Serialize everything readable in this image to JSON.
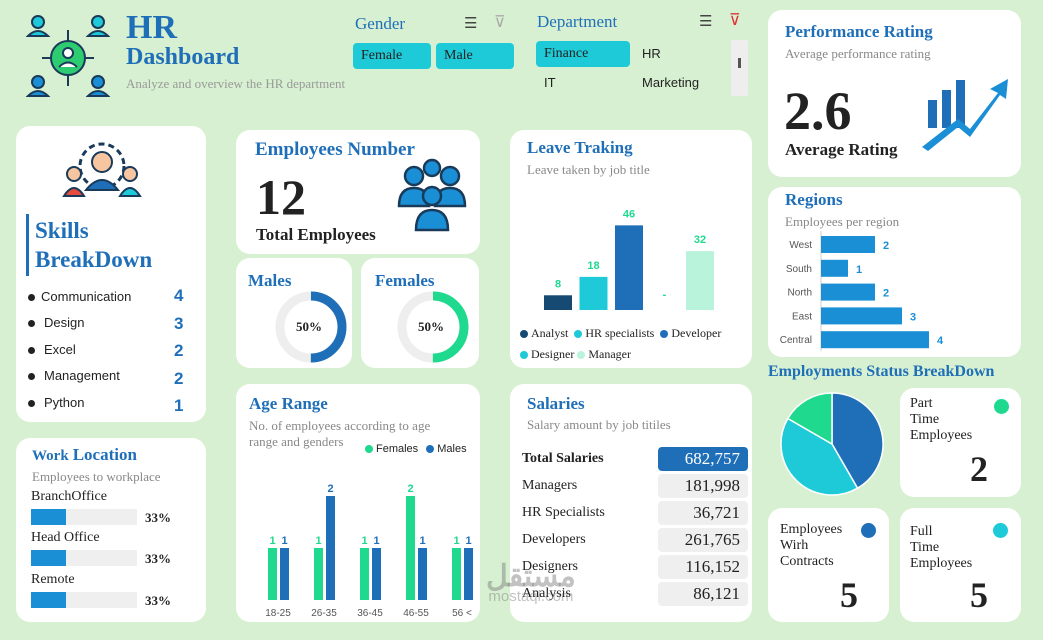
{
  "header": {
    "title_line1": "HR",
    "title_line2": "Dashboard",
    "subtitle": "Analyze and overview the HR department"
  },
  "gender_slicer": {
    "title": "Gender",
    "options": [
      "Female",
      "Male"
    ],
    "selected": [
      "Female",
      "Male"
    ]
  },
  "department_slicer": {
    "title": "Department",
    "options": [
      "Finance",
      "HR",
      "IT",
      "Marketing"
    ],
    "selected": [
      "Finance"
    ]
  },
  "performance": {
    "title": "Performance Rating",
    "subtitle": "Average performance rating",
    "value": "2.6",
    "label": "Average Rating"
  },
  "skills": {
    "title_line1": "Skills",
    "title_line2": "BreakDown",
    "items": [
      {
        "name": "Communication",
        "count": "4"
      },
      {
        "name": "Design",
        "count": "3"
      },
      {
        "name": "Excel",
        "count": "2"
      },
      {
        "name": "Management",
        "count": "2"
      },
      {
        "name": "Python",
        "count": "1"
      }
    ]
  },
  "employees": {
    "title": "Employees Number",
    "value": "12",
    "label": "Total Employees"
  },
  "males": {
    "title": "Males",
    "value_text": "50%",
    "value": 0.5
  },
  "females": {
    "title": "Females",
    "value_text": "50%",
    "value": 0.5
  },
  "work_location": {
    "title_a": "Work",
    "title_b": "Location",
    "subtitle": "Employees to workplace",
    "items": [
      {
        "name": "BranchOffice",
        "pct_text": "33%",
        "value": 0.33
      },
      {
        "name": "Head Office",
        "pct_text": "33%",
        "value": 0.33
      },
      {
        "name": "Remote",
        "pct_text": "33%",
        "value": 0.33
      }
    ]
  },
  "leave": {
    "title": "Leave Traking",
    "subtitle": "Leave taken by job title"
  },
  "age": {
    "title": "Age Range",
    "subtitle_line1": "No. of employees according to age",
    "subtitle_line2": "range and genders"
  },
  "salaries": {
    "title": "Salaries",
    "subtitle": "Salary amount by job titiles",
    "rows": [
      {
        "label": "Total Salaries",
        "value": "682,757"
      },
      {
        "label": "Managers",
        "value": "181,998"
      },
      {
        "label": "HR Specialists",
        "value": "36,721"
      },
      {
        "label": "Developers",
        "value": "261,765"
      },
      {
        "label": "Designers",
        "value": "116,152"
      },
      {
        "label": "Analysis",
        "value": "86,121"
      }
    ]
  },
  "regions": {
    "title": "Regions",
    "subtitle": "Employees per region"
  },
  "status": {
    "title": "Employments Status BreakDown",
    "part_time": {
      "label_lines": [
        "Part",
        "Time",
        "Employees"
      ],
      "value": "2",
      "color": "#1fd98f"
    },
    "contracts": {
      "label_lines": [
        "Employees",
        "Wirh",
        "Contracts"
      ],
      "value": "5",
      "color": "#1f6fb8"
    },
    "full_time": {
      "label_lines": [
        "Full",
        "Time",
        "Employees"
      ],
      "value": "5",
      "color": "#1ecad8"
    }
  },
  "watermark": {
    "text_ar": "مستقل",
    "text_en": "mostaql.com"
  },
  "chart_data": [
    {
      "id": "leave",
      "type": "bar",
      "categories": [
        "Analyst",
        "HR specialists",
        "Developer",
        "Designer",
        "Manager"
      ],
      "values": [
        8,
        18,
        46,
        null,
        32
      ],
      "labels": [
        "8",
        "18",
        "46",
        "-",
        "32"
      ],
      "colors": [
        "#174a73",
        "#1ecad8",
        "#1f6fb8",
        "#1ecad8",
        "#b9f3dc"
      ],
      "ylim": [
        0,
        50
      ]
    },
    {
      "id": "age",
      "type": "bar",
      "categories": [
        "18-25",
        "26-35",
        "36-45",
        "46-55",
        "56 <"
      ],
      "series": [
        {
          "name": "Females",
          "values": [
            1,
            1,
            1,
            2,
            1
          ],
          "color": "#1fd98f"
        },
        {
          "name": "Males",
          "values": [
            1,
            2,
            1,
            1,
            1
          ],
          "color": "#1f6fb8"
        }
      ],
      "ylim": [
        0,
        2
      ]
    },
    {
      "id": "regions",
      "type": "bar",
      "orientation": "horizontal",
      "categories": [
        "West",
        "South",
        "North",
        "East",
        "Central"
      ],
      "values": [
        2,
        1,
        2,
        3,
        4
      ],
      "xlim": [
        0,
        4
      ],
      "color": "#1a8fd6"
    },
    {
      "id": "status_pie",
      "type": "pie",
      "categories": [
        "Employees Wirh Contracts",
        "Full Time Employees",
        "Part Time Employees"
      ],
      "values": [
        5,
        5,
        2
      ],
      "colors": [
        "#1f6fb8",
        "#1ecad8",
        "#1fd98f"
      ]
    }
  ]
}
